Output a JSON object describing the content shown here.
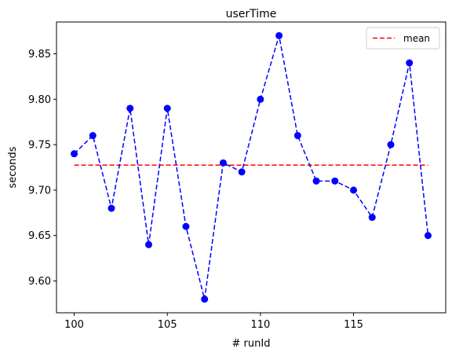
{
  "chart_data": {
    "type": "line",
    "title": "userTime",
    "xlabel": "# runId",
    "ylabel": "seconds",
    "x": [
      100,
      101,
      102,
      103,
      104,
      105,
      106,
      107,
      108,
      109,
      110,
      111,
      112,
      113,
      114,
      115,
      116,
      117,
      118,
      119
    ],
    "series": [
      {
        "values": [
          9.74,
          9.76,
          9.68,
          9.79,
          9.64,
          9.79,
          9.66,
          9.58,
          9.73,
          9.72,
          9.8,
          9.87,
          9.76,
          9.71,
          9.71,
          9.7,
          9.67,
          9.75,
          9.84,
          9.65
        ],
        "color": "#0000ff",
        "style": "dashed",
        "marker": "circle"
      },
      {
        "name": "mean",
        "values": [
          9.7275,
          9.7275,
          9.7275,
          9.7275,
          9.7275,
          9.7275,
          9.7275,
          9.7275,
          9.7275,
          9.7275,
          9.7275,
          9.7275,
          9.7275,
          9.7275,
          9.7275,
          9.7275,
          9.7275,
          9.7275,
          9.7275,
          9.7275
        ],
        "color": "#ff0000",
        "style": "dashed"
      }
    ],
    "xticks": [
      100,
      105,
      110,
      115
    ],
    "yticks": [
      9.6,
      9.65,
      9.7,
      9.75,
      9.8,
      9.85
    ],
    "xlim": [
      99.05,
      119.95
    ],
    "ylim": [
      9.565,
      9.885
    ],
    "legend": {
      "placement": "top-right",
      "entries": [
        "mean"
      ]
    },
    "grid": false
  }
}
